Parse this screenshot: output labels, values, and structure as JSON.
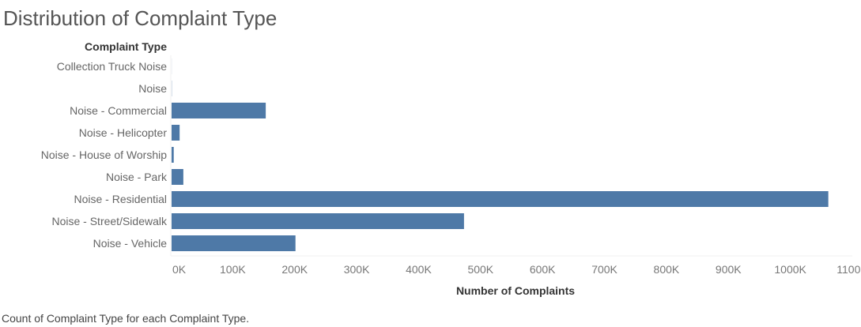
{
  "chart_data": {
    "type": "bar",
    "orientation": "horizontal",
    "title": "Distribution of Complaint Type",
    "row_header": "Complaint Type",
    "xlabel": "Number of Complaints",
    "caption": "Count of Complaint Type for each Complaint Type.",
    "categories": [
      "Collection Truck Noise",
      "Noise",
      "Noise - Commercial",
      "Noise - Helicopter",
      "Noise - House of Worship",
      "Noise - Park",
      "Noise - Residential",
      "Noise - Street/Sidewalk",
      "Noise - Vehicle"
    ],
    "values": [
      100,
      300,
      152000,
      13000,
      3500,
      19000,
      1060000,
      472000,
      200000
    ],
    "xlim": [
      0,
      1100000
    ],
    "xticks": [
      0,
      100000,
      200000,
      300000,
      400000,
      500000,
      600000,
      700000,
      800000,
      900000,
      1000000,
      1100000
    ],
    "xtick_labels": [
      "0K",
      "100K",
      "200K",
      "300K",
      "400K",
      "500K",
      "600K",
      "700K",
      "800K",
      "900K",
      "1000K",
      "1100K"
    ],
    "bar_color": "#4e79a7",
    "grid": false
  }
}
